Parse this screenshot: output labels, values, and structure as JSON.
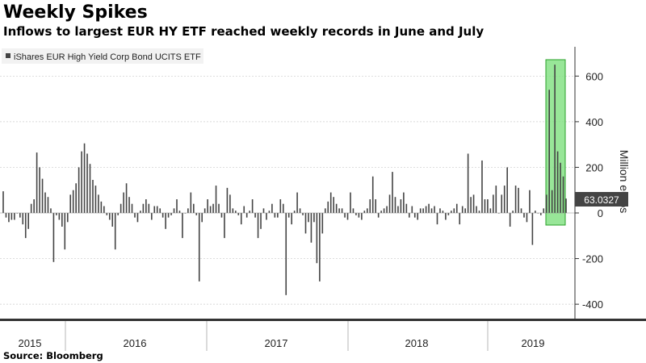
{
  "title": "Weekly Spikes",
  "subtitle": "Inflows to largest EUR HY ETF reached weekly records in June and July",
  "source": "Source: Bloomberg",
  "chart_data": {
    "type": "bar",
    "series_name": "iShares EUR High Yield Corp Bond UCITS ETF",
    "ylabel": "Million euros",
    "ylim": [
      -450,
      730
    ],
    "yticks": [
      -400,
      -200,
      0,
      200,
      400,
      600
    ],
    "year_labels": [
      "2015",
      "2016",
      "2017",
      "2018",
      "2019"
    ],
    "last_value_label": "63.0327",
    "last_value": 63.0327,
    "grid": true,
    "legend_position": "top-left",
    "highlight_period": "June-July 2019",
    "colors": {
      "bar": "#444444",
      "highlight_fill": "#7ee07e",
      "highlight_stroke": "#2aa02a",
      "grid": "#cccccc",
      "label_bg": "#444444"
    },
    "weekly_values": [
      95,
      -20,
      -40,
      -30,
      -30,
      0,
      -20,
      -50,
      -110,
      -70,
      40,
      60,
      265,
      200,
      150,
      90,
      70,
      20,
      -215,
      -10,
      -30,
      -60,
      -160,
      -40,
      80,
      100,
      130,
      200,
      270,
      305,
      260,
      215,
      145,
      120,
      80,
      50,
      30,
      -10,
      -30,
      -60,
      -160,
      -10,
      40,
      90,
      130,
      70,
      40,
      -20,
      -40,
      10,
      40,
      60,
      40,
      -30,
      30,
      30,
      20,
      -20,
      -70,
      -20,
      -10,
      20,
      60,
      10,
      -110,
      0,
      20,
      90,
      40,
      -10,
      -300,
      -40,
      20,
      60,
      30,
      40,
      120,
      40,
      -20,
      -110,
      110,
      80,
      20,
      10,
      -10,
      -50,
      30,
      -20,
      10,
      60,
      -20,
      -110,
      -70,
      20,
      -30,
      10,
      40,
      -20,
      -20,
      60,
      40,
      -360,
      -20,
      -50,
      10,
      90,
      20,
      -10,
      -90,
      -40,
      -130,
      -40,
      -220,
      -300,
      -90,
      20,
      50,
      90,
      70,
      40,
      20,
      20,
      -20,
      -30,
      90,
      20,
      -10,
      -20,
      -30,
      10,
      20,
      60,
      160,
      60,
      -20,
      10,
      20,
      30,
      80,
      180,
      70,
      30,
      60,
      90,
      40,
      -20,
      30,
      -20,
      -30,
      20,
      20,
      30,
      40,
      20,
      30,
      -50,
      20,
      10,
      -30,
      -10,
      10,
      20,
      40,
      -50,
      30,
      20,
      260,
      70,
      80,
      30,
      10,
      230,
      60,
      60,
      20,
      80,
      120,
      0,
      80,
      120,
      200,
      -60,
      10,
      120,
      110,
      20,
      -20,
      -40,
      100,
      -140,
      10,
      0,
      -10,
      20,
      80,
      540,
      100,
      650,
      270,
      220,
      160,
      63
    ]
  }
}
